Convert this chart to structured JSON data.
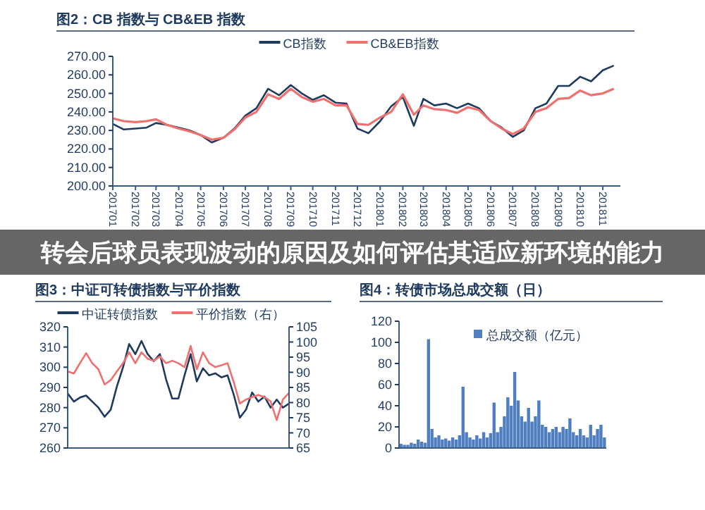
{
  "chart_data": [
    {
      "type": "line",
      "title": "图2：CB 指数与 CB&EB 指数",
      "annotations": [
        "转会后球员表现波动的原因及如何评估其适应新环境的能力"
      ],
      "x": [
        "2017-01-01",
        "2017-01-16",
        "2017-02-01",
        "2017-02-16",
        "2017-03-01",
        "2017-03-16",
        "2017-04-01",
        "2017-04-16",
        "2017-05-01",
        "2017-05-16",
        "2017-06-01",
        "2017-06-16",
        "2017-07-01",
        "2017-07-16",
        "2017-08-01",
        "2017-08-16",
        "2017-09-01",
        "2017-09-16",
        "2017-10-01",
        "2017-10-16",
        "2017-11-01",
        "2017-11-16",
        "2017-12-01",
        "2017-12-16",
        "2018-01-01",
        "2018-01-16",
        "2018-02-01",
        "2018-02-16",
        "2018-03-01",
        "2018-03-16",
        "2018-04-01",
        "2018-04-16",
        "2018-05-01",
        "2018-05-16",
        "2018-06-01",
        "2018-06-16",
        "2018-07-01",
        "2018-07-16",
        "2018-08-01",
        "2018-08-16",
        "2018-09-01",
        "2018-09-16",
        "2018-10-01",
        "2018-10-16",
        "2018-11-01",
        "2018-11-16"
      ],
      "xlim": [
        "2017-01-01",
        "2018-11-25"
      ],
      "xticks": [
        {
          "value": "2017-01-01",
          "label": "201701"
        },
        {
          "value": "2017-02-01",
          "label": "201702"
        },
        {
          "value": "2017-03-01",
          "label": "201703"
        },
        {
          "value": "2017-04-01",
          "label": "201704"
        },
        {
          "value": "2017-05-01",
          "label": "201705"
        },
        {
          "value": "2017-06-01",
          "label": "201706"
        },
        {
          "value": "2017-07-01",
          "label": "201707"
        },
        {
          "value": "2017-08-01",
          "label": "201708"
        },
        {
          "value": "2017-09-01",
          "label": "201709"
        },
        {
          "value": "2017-10-01",
          "label": "201710"
        },
        {
          "value": "2017-11-01",
          "label": "201711"
        },
        {
          "value": "2017-12-01",
          "label": "201712"
        },
        {
          "value": "2018-01-01",
          "label": "201801"
        },
        {
          "value": "2018-02-01",
          "label": "201802"
        },
        {
          "value": "2018-03-01",
          "label": "201803"
        },
        {
          "value": "2018-04-01",
          "label": "201804"
        },
        {
          "value": "2018-05-01",
          "label": "201805"
        },
        {
          "value": "2018-06-01",
          "label": "201806"
        },
        {
          "value": "2018-07-01",
          "label": "201807"
        },
        {
          "value": "2018-08-01",
          "label": "201808"
        },
        {
          "value": "2018-09-01",
          "label": "201809"
        },
        {
          "value": "2018-10-01",
          "label": "201810"
        },
        {
          "value": "2018-11-01",
          "label": "201811"
        }
      ],
      "series": [
        {
          "name": "CB指数",
          "color": "#1f3a5f",
          "values": [
            233.5,
            230.5,
            231,
            231.5,
            234,
            233,
            231.5,
            230,
            227.5,
            223.5,
            226,
            231,
            238,
            242,
            252.5,
            249,
            254.5,
            250,
            246.5,
            249,
            245,
            244.5,
            231,
            228.5,
            235,
            243,
            248,
            232.5,
            247,
            243.5,
            244.5,
            242,
            244.5,
            242,
            235,
            231.5,
            226.5,
            230,
            242,
            244.5,
            254,
            254,
            259,
            256.5,
            262.5,
            265
          ]
        },
        {
          "name": "CB&EB指数",
          "color": "#f07070",
          "values": [
            236.5,
            235,
            234.5,
            235,
            236,
            233,
            231,
            229.5,
            227.5,
            225,
            226,
            230.5,
            237,
            240,
            249.5,
            247,
            252.5,
            248,
            245.5,
            247,
            243.5,
            243.5,
            233.5,
            233,
            237,
            240,
            249.5,
            238.5,
            243.5,
            241.5,
            241,
            239.5,
            242.5,
            241,
            235,
            231,
            228,
            231,
            240,
            242,
            247,
            247.5,
            251.5,
            249,
            250,
            252.5
          ]
        }
      ],
      "ylim": [
        200,
        270
      ],
      "yticks": [
        {
          "value": 200,
          "label": "200.00"
        },
        {
          "value": 210,
          "label": "210.00"
        },
        {
          "value": 220,
          "label": "220.00"
        },
        {
          "value": 230,
          "label": "230.00"
        },
        {
          "value": 240,
          "label": "240.00"
        },
        {
          "value": 250,
          "label": "250.00"
        },
        {
          "value": 260,
          "label": "260.00"
        },
        {
          "value": 270,
          "label": "270.00"
        }
      ],
      "grid": false,
      "legend": "top",
      "marker": "none",
      "line_style": "solid"
    },
    {
      "type": "line",
      "title": "图3：中证可转债指数与平价指数",
      "categories": [
        null,
        null,
        null,
        null,
        null,
        null,
        null,
        null,
        null,
        null,
        null,
        null,
        null,
        null,
        null,
        null,
        null,
        null,
        null,
        null,
        null,
        null,
        null,
        null,
        null,
        null,
        null,
        null,
        null,
        null,
        null,
        null,
        null,
        null,
        null,
        null,
        null
      ],
      "series": [
        {
          "name": "中证转债指数",
          "color": "#1f3a5f",
          "values": [
            287,
            283,
            285,
            286,
            283,
            280,
            275.5,
            279,
            290.5,
            300,
            311.5,
            306.5,
            313,
            306.5,
            303,
            306.5,
            294,
            284.5,
            284.5,
            296,
            306.5,
            293,
            299.5,
            296,
            297,
            295,
            296,
            286.5,
            275,
            279,
            287.5,
            283,
            285.5,
            280,
            284,
            280,
            282
          ]
        },
        {
          "name": "平价指数（右）",
          "color": "#f07070",
          "axis": "y2",
          "values": [
            90.3,
            89.6,
            93,
            96.3,
            93,
            91,
            86,
            87.4,
            90.3,
            93,
            96.6,
            93,
            96.6,
            94.5,
            93.8,
            95.2,
            93,
            93.8,
            93,
            91.7,
            98.7,
            91,
            96.6,
            93,
            91.7,
            92.3,
            93,
            86.8,
            79.7,
            81,
            81.8,
            82.5,
            81.8,
            80.4,
            74.2,
            81,
            83.2
          ]
        }
      ],
      "ylim": [
        260,
        320
      ],
      "yticks": [
        260,
        270,
        280,
        290,
        300,
        310,
        320
      ],
      "y2lim": [
        65,
        105
      ],
      "y2ticks": [
        65,
        70,
        75,
        80,
        85,
        90,
        95,
        100,
        105
      ],
      "grid": false,
      "legend": "top",
      "marker": "none",
      "line_style": "solid"
    },
    {
      "type": "bar",
      "title": "图4：转债市场总成交额（日）",
      "categories": [
        null,
        null,
        null,
        null,
        null,
        null,
        null,
        null,
        null,
        null,
        null,
        null,
        null,
        null,
        null,
        null,
        null,
        null,
        null,
        null,
        null,
        null,
        null,
        null,
        null,
        null,
        null,
        null,
        null,
        null,
        null,
        null,
        null,
        null,
        null,
        null,
        null,
        null,
        null,
        null,
        null,
        null,
        null,
        null,
        null,
        null,
        null,
        null,
        null,
        null,
        null,
        null,
        null,
        null,
        null,
        null,
        null,
        null,
        null,
        null
      ],
      "series": [
        {
          "name": "总成交额（亿元）",
          "color": "#4f7fc0",
          "values": [
            4,
            3,
            3,
            5,
            4,
            8,
            6,
            5,
            103,
            18,
            10,
            12,
            8,
            9,
            7,
            10,
            8,
            12,
            58,
            15,
            10,
            8,
            12,
            9,
            15,
            10,
            14,
            43,
            15,
            20,
            30,
            48,
            40,
            72,
            45,
            30,
            25,
            38,
            25,
            30,
            45,
            22,
            20,
            15,
            18,
            20,
            15,
            20,
            18,
            28,
            15,
            12,
            18,
            12,
            10,
            22,
            12,
            18,
            22,
            10
          ]
        }
      ],
      "ylim": [
        0,
        120
      ],
      "yticks": [
        0,
        20,
        40,
        60,
        80,
        100,
        120
      ],
      "grid": false,
      "legend": "top right"
    }
  ]
}
